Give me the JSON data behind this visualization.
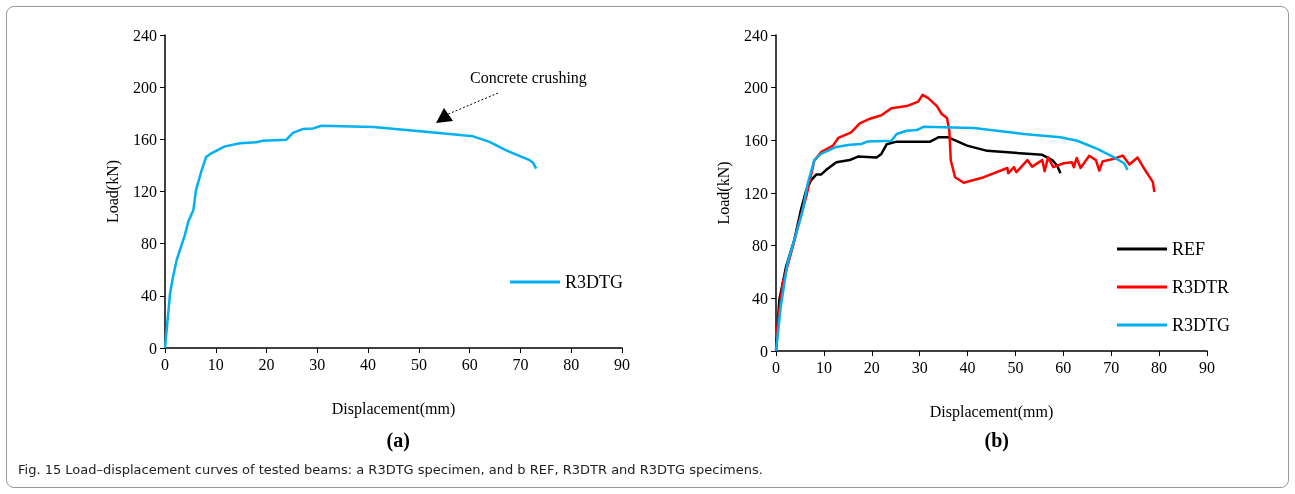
{
  "chart_data": [
    {
      "type": "line",
      "title": "(a)",
      "xlabel": "Displacement(mm)",
      "ylabel": "Load(kN)",
      "xlim": [
        0,
        90
      ],
      "xticks": [
        0,
        10,
        20,
        30,
        40,
        50,
        60,
        70,
        80,
        90
      ],
      "ylim": [
        0,
        240
      ],
      "yticks": [
        0,
        40,
        80,
        120,
        160,
        200,
        240
      ],
      "grid": false,
      "legend": "right",
      "marker": "none",
      "line_style": "solid",
      "annotations": [
        "Concrete crushing"
      ],
      "series": [
        {
          "name": "R3DTG",
          "color": "#00b0f0",
          "x": [
            0,
            1,
            1.6,
            2.3,
            3.9,
            4.6,
            5.6,
            6.1,
            7.2,
            8.1,
            9.2,
            11.8,
            14.8,
            18,
            19.3,
            23.9,
            25.2,
            27.2,
            29.2,
            30.8,
            41,
            50.8,
            60.7,
            63.9,
            67.2,
            71.8,
            72.5,
            73.1
          ],
          "values": [
            0,
            42,
            55,
            67.5,
            86.6,
            97,
            106,
            121,
            136,
            146.5,
            149.5,
            154.6,
            157,
            157.7,
            159,
            159.7,
            165,
            168,
            168.4,
            170.4,
            169.4,
            166,
            162.3,
            158,
            151.6,
            144,
            142,
            137.6
          ]
        }
      ]
    },
    {
      "type": "line",
      "title": "(b)",
      "xlabel": "Displacement(mm)",
      "ylabel": "Load(kN)",
      "xlim": [
        0,
        90
      ],
      "xticks": [
        0,
        10,
        20,
        30,
        40,
        50,
        60,
        70,
        80,
        90
      ],
      "ylim": [
        0,
        240
      ],
      "yticks": [
        0,
        40,
        80,
        120,
        160,
        200,
        240
      ],
      "grid": false,
      "legend": "bottom right",
      "marker": "none",
      "line_style": "solid",
      "annotations": [
        "Fig. 15  Load–displacement curves of tested beams: a R3DTG specimen, and b REF, R3DTR and R3DTG specimens."
      ],
      "series": [
        {
          "name": "REF",
          "color": "#000000",
          "x": [
            0,
            0.7,
            2.1,
            3.8,
            5.2,
            6.3,
            7.3,
            8.4,
            9.4,
            10.5,
            12.6,
            15.4,
            17.1,
            21,
            22,
            23.1,
            25.2,
            32.2,
            33.9,
            36,
            39.9,
            44.1,
            51.7,
            55.6,
            57.7,
            58.7,
            59.4
          ],
          "values": [
            0,
            39,
            64,
            84,
            107,
            122,
            129.6,
            134,
            134,
            137.6,
            143.4,
            145,
            147.7,
            147,
            149.7,
            157,
            159,
            159,
            162.3,
            162.3,
            156,
            152,
            150,
            149,
            145,
            140.9,
            135
          ]
        },
        {
          "name": "R3DTR",
          "color": "#ff0000",
          "x": [
            0,
            1.4,
            3.5,
            4.9,
            6.3,
            8,
            9.4,
            11.9,
            13,
            15.7,
            17.5,
            19.3,
            22,
            24.1,
            27.3,
            29.7,
            30.6,
            31.8,
            33.6,
            34.6,
            35.7,
            36.2,
            36.5,
            37.4,
            39.2,
            43.4,
            48.3,
            48.5,
            49.7,
            50.2,
            52.5,
            53.5,
            55.6,
            56.1,
            56.8,
            57.9,
            60.1,
            61.8,
            62.2,
            62.8,
            63.6,
            65.4,
            66.8,
            67.5,
            68.2,
            70.6,
            72.4,
            73.8,
            75.5,
            76.9,
            78.7,
            79
          ],
          "values": [
            10,
            51.6,
            79,
            99,
            117,
            144.7,
            151,
            156,
            161.8,
            166,
            172.8,
            176,
            179,
            184.4,
            186,
            189.4,
            194.5,
            192,
            186,
            180,
            177,
            167,
            144.7,
            132,
            127.8,
            132,
            139,
            135,
            139.6,
            135.8,
            145,
            140,
            145,
            136.6,
            147,
            139.6,
            142.6,
            143.4,
            139.6,
            146.6,
            139,
            148.3,
            145,
            137,
            144,
            146,
            148.4,
            141.6,
            147,
            138.4,
            128.3,
            120.8
          ]
        },
        {
          "name": "R3DTG",
          "color": "#00b0f0",
          "x": [
            0,
            1,
            2.4,
            4.2,
            5.6,
            6.6,
            8,
            9.4,
            12.6,
            15.4,
            17.8,
            19.2,
            24.1,
            25.2,
            27.3,
            29.4,
            30.8,
            41.3,
            51.7,
            59.4,
            62.9,
            67.1,
            70.6,
            72.7,
            73.4
          ],
          "values": [
            0,
            34,
            66.7,
            89,
            107,
            127,
            145,
            149.7,
            155,
            156.7,
            157.2,
            159.2,
            159.7,
            164.8,
            167.3,
            167.8,
            170.3,
            169.3,
            164.8,
            162.3,
            159.7,
            153.5,
            147,
            142.6,
            137.6
          ]
        }
      ]
    }
  ]
}
